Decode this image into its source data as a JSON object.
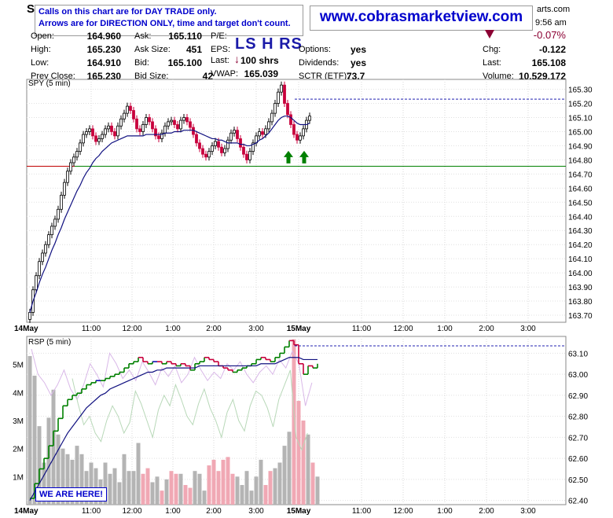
{
  "header": {
    "symbol_partial": "S",
    "time_partial": "9:56 am",
    "site_partial": "arts.com",
    "note_line1": "Calls on this chart are for DAY TRADE only.",
    "note_line2": "Arrows are for DIRECTION ONLY, time and target don't count.",
    "website": "www.cobrasmarketview.com",
    "annotation": "LS H RS",
    "change_pct": "-0.07%",
    "colors": {
      "note_text": "#0000cc",
      "down": "#8b0033",
      "up": "#008000"
    }
  },
  "quote": {
    "open_label": "Open:",
    "open": "164.960",
    "high_label": "High:",
    "high": "165.230",
    "low_label": "Low:",
    "low": "164.910",
    "prev_close_label": "Prev Close:",
    "prev_close": "165.230",
    "ask_label": "Ask:",
    "ask": "165.110",
    "ask_size_label": "Ask Size:",
    "ask_size": "451",
    "bid_label": "Bid:",
    "bid": "165.100",
    "bid_size_label": "Bid Size:",
    "bid_size": "42",
    "pe_label": "P/E:",
    "pe": "",
    "eps_label": "EPS:",
    "eps": "",
    "last_label": "Last:",
    "last_size": "100 shrs",
    "vwap_label": "VWAP:",
    "vwap": "165.039",
    "options_label": "Options:",
    "options": "yes",
    "dividends_label": "Dividends:",
    "dividends": "yes",
    "sctr_label": "SCTR (ETF):",
    "sctr": "73.7",
    "chg_label": "Chg:",
    "chg": "-0.122",
    "last2_label": "Last:",
    "last_price": "165.108",
    "volume_label": "Volume:",
    "volume": "10,529,172"
  },
  "annotations": {
    "we_are_here": "WE ARE HERE!"
  },
  "chart_data": [
    {
      "type": "line",
      "title": "SPY (5 min)",
      "x_labels": [
        "14May",
        "11:00",
        "12:00",
        "1:00",
        "2:00",
        "3:00",
        "15May",
        "11:00",
        "12:00",
        "1:00",
        "2:00",
        "3:00"
      ],
      "y_ticks": [
        "165.30",
        "165.20",
        "165.10",
        "165.00",
        "164.90",
        "164.80",
        "164.70",
        "164.60",
        "164.50",
        "164.40",
        "164.30",
        "164.20",
        "164.10",
        "164.00",
        "163.90",
        "163.80",
        "163.70"
      ],
      "ylim": [
        163.65,
        165.37
      ],
      "price": [
        163.72,
        163.88,
        163.98,
        164.08,
        164.14,
        164.2,
        164.27,
        164.33,
        164.38,
        164.45,
        164.55,
        164.64,
        164.72,
        164.78,
        164.82,
        164.86,
        164.92,
        164.98,
        165.0,
        165.02,
        164.97,
        164.93,
        164.95,
        164.98,
        165.02,
        165.04,
        165.0,
        164.97,
        165.04,
        165.09,
        165.13,
        165.18,
        165.15,
        165.09,
        165.02,
        165.0,
        165.05,
        165.1,
        165.07,
        165.02,
        164.97,
        164.95,
        164.99,
        165.04,
        165.07,
        165.08,
        165.05,
        165.02,
        165.08,
        165.1,
        165.07,
        165.03,
        164.98,
        164.92,
        164.88,
        164.84,
        164.82,
        164.86,
        164.9,
        164.93,
        164.89,
        164.85,
        164.88,
        164.94,
        164.99,
        165.01,
        164.95,
        164.89,
        164.84,
        164.8,
        164.86,
        164.92,
        164.97,
        165.0,
        164.98,
        165.02,
        165.07,
        165.13,
        165.2,
        165.28,
        165.33,
        165.2,
        165.12,
        165.05,
        164.98,
        164.94,
        164.97,
        165.02,
        165.08,
        165.11
      ],
      "ma": [
        163.72,
        163.8,
        163.86,
        163.93,
        163.99,
        164.04,
        164.1,
        164.16,
        164.21,
        164.27,
        164.32,
        164.38,
        164.43,
        164.48,
        164.53,
        164.58,
        164.62,
        164.67,
        164.71,
        164.74,
        164.78,
        164.81,
        164.83,
        164.86,
        164.88,
        164.9,
        164.92,
        164.93,
        164.94,
        164.95,
        164.96,
        164.97,
        164.97,
        164.97,
        164.97,
        164.97,
        164.97,
        164.98,
        164.98,
        164.98,
        164.98,
        164.98,
        164.98,
        164.99,
        164.99,
        164.99,
        165.0,
        165.0,
        165.0,
        165.01,
        165.01,
        165.01,
        165.01,
        165.0,
        164.99,
        164.98,
        164.97,
        164.96,
        164.95,
        164.95,
        164.94,
        164.94,
        164.93,
        164.92,
        164.92,
        164.92,
        164.92,
        164.91,
        164.91,
        164.9,
        164.9,
        164.91,
        164.92,
        164.94,
        164.95,
        164.97,
        164.99,
        165.02,
        165.05,
        165.08,
        165.1,
        165.11,
        165.11,
        165.1,
        165.08,
        165.06,
        165.05,
        165.05,
        165.05,
        165.06
      ],
      "prev_close": 165.23,
      "support": 164.755,
      "arrows": [
        {
          "direction": "up",
          "index": 82
        },
        {
          "direction": "up",
          "index": 87
        }
      ],
      "arrow_price": 164.87,
      "grid": true
    },
    {
      "type": "line",
      "title": "RSP (5 min)",
      "x_labels": [
        "14May",
        "11:00",
        "12:00",
        "1:00",
        "2:00",
        "3:00",
        "15May",
        "11:00",
        "12:00",
        "1:00",
        "2:00",
        "3:00"
      ],
      "y_ticks": [
        "63.10",
        "63.00",
        "62.90",
        "62.80",
        "62.70",
        "62.60",
        "62.50",
        "62.40"
      ],
      "volume_ticks": [
        "5M",
        "4M",
        "3M",
        "2M",
        "1M"
      ],
      "ylim": [
        62.38,
        63.18
      ],
      "volume_max": 6000000,
      "price": [
        62.41,
        62.48,
        62.55,
        62.6,
        62.66,
        62.73,
        62.79,
        62.85,
        62.88,
        62.9,
        62.91,
        62.93,
        62.95,
        62.96,
        62.97,
        62.97,
        62.98,
        62.99,
        63.0,
        63.01,
        63.03,
        63.05,
        63.06,
        63.08,
        63.06,
        63.05,
        63.06,
        63.06,
        63.05,
        63.06,
        63.05,
        63.04,
        63.05,
        63.04,
        63.02,
        63.05,
        63.06,
        63.08,
        63.07,
        63.06,
        63.04,
        63.03,
        63.02,
        63.01,
        63.02,
        63.03,
        63.04,
        63.05,
        63.07,
        63.08,
        63.07,
        63.06,
        63.08,
        63.1,
        63.13,
        63.16,
        63.14,
        63.05,
        63.0,
        63.04,
        63.03,
        63.05
      ],
      "ma": [
        62.4,
        62.44,
        62.48,
        62.52,
        62.56,
        62.6,
        62.64,
        62.68,
        62.72,
        62.75,
        62.78,
        62.81,
        62.84,
        62.86,
        62.88,
        62.9,
        62.91,
        62.93,
        62.94,
        62.95,
        62.96,
        62.97,
        62.98,
        62.99,
        63.0,
        63.01,
        63.01,
        63.02,
        63.02,
        63.03,
        63.03,
        63.03,
        63.03,
        63.03,
        63.03,
        63.03,
        63.04,
        63.04,
        63.04,
        63.04,
        63.04,
        63.04,
        63.04,
        63.04,
        63.04,
        63.04,
        63.04,
        63.04,
        63.04,
        63.05,
        63.05,
        63.05,
        63.05,
        63.06,
        63.07,
        63.08,
        63.08,
        63.08,
        63.07,
        63.07,
        63.07,
        63.07
      ],
      "overlay_a": [
        63.12,
        63.0,
        62.96,
        62.9,
        62.95,
        63.02,
        62.93,
        62.88,
        62.95,
        63.05,
        63.0,
        62.94,
        63.1,
        63.05,
        62.98,
        63.02,
        62.97,
        63.06,
        63.01,
        62.95,
        63.03,
        62.99,
        63.04,
        62.96,
        63.0,
        63.08,
        63.02,
        62.97,
        63.01,
        62.98,
        63.05,
        63.02,
        63.06,
        63.0,
        62.96,
        63.01,
        63.04,
        63.0,
        63.07,
        63.03,
        63.11,
        63.05,
        62.85,
        62.96
      ],
      "overlay_b": [
        62.98,
        62.86,
        62.76,
        62.8,
        62.72,
        62.68,
        62.78,
        62.85,
        62.8,
        62.72,
        62.77,
        62.92,
        62.86,
        62.78,
        62.7,
        62.83,
        62.9,
        62.85,
        62.95,
        62.88,
        62.8,
        62.76,
        62.86,
        62.93,
        62.84,
        62.78,
        62.7,
        62.82,
        62.88,
        62.78,
        62.73,
        62.85,
        62.92,
        62.9,
        62.84,
        62.75,
        62.88,
        62.95,
        63.02,
        62.7,
        62.64,
        62.72
      ],
      "volume": [
        5300000,
        4600000,
        2800000,
        1500000,
        3100000,
        4100000,
        2500000,
        2000000,
        1800000,
        1600000,
        2100000,
        1800000,
        1200000,
        1500000,
        1300000,
        900000,
        1500000,
        1100000,
        1300000,
        800000,
        1800000,
        1200000,
        1200000,
        2200000,
        1100000,
        1300000,
        800000,
        1000000,
        500000,
        900000,
        1200000,
        1100000,
        1100000,
        700000,
        600000,
        1200000,
        1100000,
        500000,
        1400000,
        1600000,
        1200000,
        1600000,
        1700000,
        1100000,
        1000000,
        700000,
        1200000,
        500000,
        1000000,
        1600000,
        700000,
        1200000,
        1300000,
        1500000,
        2100000,
        2600000,
        5900000,
        3700000,
        3000000,
        2500000,
        1500000,
        1000000
      ],
      "prev_close": 63.135,
      "grid": true
    }
  ]
}
